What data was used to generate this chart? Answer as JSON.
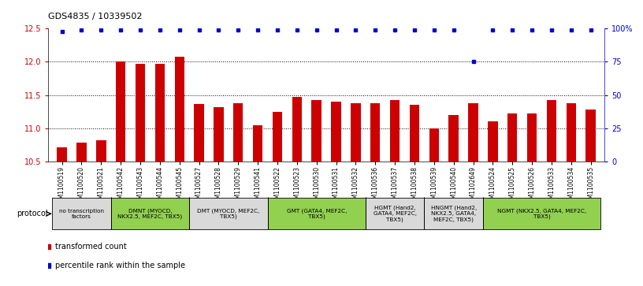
{
  "title": "GDS4835 / 10339502",
  "samples": [
    "GSM1100519",
    "GSM1100520",
    "GSM1100521",
    "GSM1100542",
    "GSM1100543",
    "GSM1100544",
    "GSM1100545",
    "GSM1100527",
    "GSM1100528",
    "GSM1100529",
    "GSM1100541",
    "GSM1100522",
    "GSM1100523",
    "GSM1100530",
    "GSM1100531",
    "GSM1100532",
    "GSM1100536",
    "GSM1100537",
    "GSM1100538",
    "GSM1100539",
    "GSM1100540",
    "GSM1102649",
    "GSM1100524",
    "GSM1100525",
    "GSM1100526",
    "GSM1100533",
    "GSM1100534",
    "GSM1100535"
  ],
  "bar_values": [
    10.72,
    10.78,
    10.82,
    12.0,
    11.97,
    11.97,
    12.08,
    11.37,
    11.32,
    11.38,
    11.05,
    11.25,
    11.47,
    11.43,
    11.4,
    11.38,
    11.38,
    11.43,
    11.35,
    11.0,
    11.2,
    11.38,
    11.1,
    11.22,
    11.22,
    11.43,
    11.38,
    11.28
  ],
  "percentile_values": [
    98,
    99,
    99,
    99,
    99,
    99,
    99,
    99,
    99,
    99,
    99,
    99,
    99,
    99,
    99,
    99,
    99,
    99,
    99,
    99,
    99,
    75,
    99,
    99,
    99,
    99,
    99,
    99
  ],
  "bar_color": "#cc0000",
  "dot_color": "#0000cc",
  "ylim_left": [
    10.5,
    12.5
  ],
  "ylim_right": [
    0,
    100
  ],
  "yticks_left": [
    10.5,
    11.0,
    11.5,
    12.0,
    12.5
  ],
  "yticks_right": [
    0,
    25,
    50,
    75,
    100
  ],
  "ytick_labels_right": [
    "0",
    "25",
    "50",
    "75",
    "100%"
  ],
  "gridlines": [
    11.0,
    11.5,
    12.0
  ],
  "protocols": [
    {
      "label": "no transcription\nfactors",
      "start": 0,
      "end": 3,
      "color": "#d9d9d9"
    },
    {
      "label": "DMNT (MYOCD,\nNKX2.5, MEF2C, TBX5)",
      "start": 3,
      "end": 7,
      "color": "#92d050"
    },
    {
      "label": "DMT (MYOCD, MEF2C,\nTBX5)",
      "start": 7,
      "end": 11,
      "color": "#d9d9d9"
    },
    {
      "label": "GMT (GATA4, MEF2C,\nTBX5)",
      "start": 11,
      "end": 16,
      "color": "#92d050"
    },
    {
      "label": "HGMT (Hand2,\nGATA4, MEF2C,\nTBX5)",
      "start": 16,
      "end": 19,
      "color": "#d9d9d9"
    },
    {
      "label": "HNGMT (Hand2,\nNKX2.5, GATA4,\nMEF2C, TBX5)",
      "start": 19,
      "end": 22,
      "color": "#d9d9d9"
    },
    {
      "label": "NGMT (NKX2.5, GATA4, MEF2C,\nTBX5)",
      "start": 22,
      "end": 28,
      "color": "#92d050"
    }
  ],
  "protocol_label": "protocol",
  "legend_bar_label": "transformed count",
  "legend_dot_label": "percentile rank within the sample",
  "background_color": "#ffffff",
  "bar_width": 0.5
}
